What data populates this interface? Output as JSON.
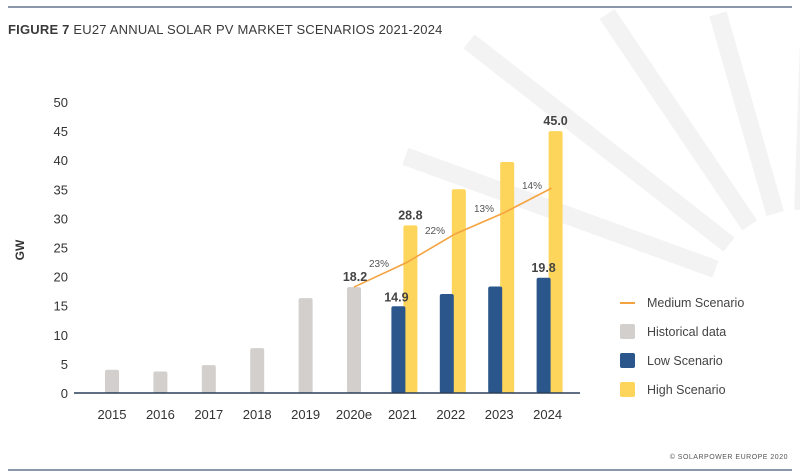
{
  "title": {
    "prefix": "FIGURE 7",
    "text": "EU27 ANNUAL SOLAR PV MARKET SCENARIOS 2021-2024"
  },
  "credit": "© SOLARPOWER EUROPE 2020",
  "colors": {
    "historical": "#d3cfcc",
    "low": "#2a568b",
    "high": "#fdd55a",
    "medium": "#f5a340",
    "axis": "#2b3f5a"
  },
  "legend": [
    {
      "label": "Medium Scenario",
      "key": "medium"
    },
    {
      "label": "Historical data",
      "key": "historical"
    },
    {
      "label": "Low Scenario",
      "key": "low"
    },
    {
      "label": "High Scenario",
      "key": "high"
    }
  ],
  "chart_data": {
    "type": "bar",
    "title": "FIGURE 7 EU27 ANNUAL SOLAR PV MARKET SCENARIOS 2021-2024",
    "ylabel": "GW",
    "xlabel": "",
    "ylim": [
      0,
      50
    ],
    "yticks": [
      0,
      5,
      10,
      15,
      20,
      25,
      30,
      35,
      40,
      45,
      50
    ],
    "categories": [
      "2015",
      "2016",
      "2017",
      "2018",
      "2019",
      "2020e",
      "2021",
      "2022",
      "2023",
      "2024"
    ],
    "series": [
      {
        "name": "Historical data",
        "type": "bar",
        "values": [
          4.0,
          3.7,
          4.8,
          7.7,
          16.3,
          18.2,
          null,
          null,
          null,
          null
        ]
      },
      {
        "name": "Low Scenario",
        "type": "bar",
        "values": [
          null,
          null,
          null,
          null,
          null,
          null,
          14.9,
          17.0,
          18.3,
          19.8
        ]
      },
      {
        "name": "High Scenario",
        "type": "bar",
        "values": [
          null,
          null,
          null,
          null,
          null,
          null,
          28.8,
          35.0,
          39.7,
          45.0
        ]
      },
      {
        "name": "Medium Scenario",
        "type": "line",
        "values": [
          null,
          null,
          null,
          null,
          null,
          18.2,
          22.4,
          27.3,
          30.9,
          35.2
        ]
      }
    ],
    "data_labels": [
      {
        "category": "2020e",
        "text": "18.2"
      },
      {
        "category": "2021",
        "text": "14.9"
      },
      {
        "category": "2021",
        "text": "28.8"
      },
      {
        "category": "2024",
        "text": "45.0"
      },
      {
        "category": "2024",
        "text": "19.8"
      }
    ],
    "growth_labels": [
      "23%",
      "22%",
      "13%",
      "14%"
    ],
    "grid": false,
    "legend_position": "right"
  }
}
